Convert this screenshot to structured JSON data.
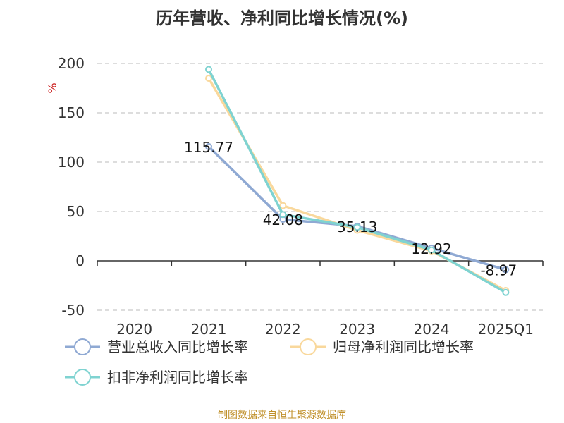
{
  "chart_data": {
    "type": "line",
    "title": "历年营收、净利同比增长情况(%)",
    "ylabel": "%",
    "xlabel": "",
    "categories": [
      "2020",
      "2021",
      "2022",
      "2023",
      "2024",
      "2025Q1"
    ],
    "ylim": [
      -50,
      200
    ],
    "yticks": [
      200,
      150,
      100,
      50,
      0,
      -50
    ],
    "grid": true,
    "legend_position": "bottom-left",
    "series": [
      {
        "name": "营业总收入同比增长率",
        "color": "#8fa9d3",
        "values": [
          null,
          115.77,
          42.08,
          35.13,
          12.92,
          -8.97
        ],
        "labels": [
          "",
          "115.77",
          "42.08",
          "35.13",
          "12.92",
          "-8.97"
        ]
      },
      {
        "name": "归母净利润同比增长率",
        "color": "#f9d89c",
        "values": [
          null,
          185,
          56,
          31,
          10,
          -30
        ]
      },
      {
        "name": "扣非净利润同比增长率",
        "color": "#7fd3d1",
        "values": [
          null,
          194,
          47,
          34,
          11,
          -32
        ]
      }
    ]
  },
  "source_note": "制图数据来自恒生聚源数据库"
}
